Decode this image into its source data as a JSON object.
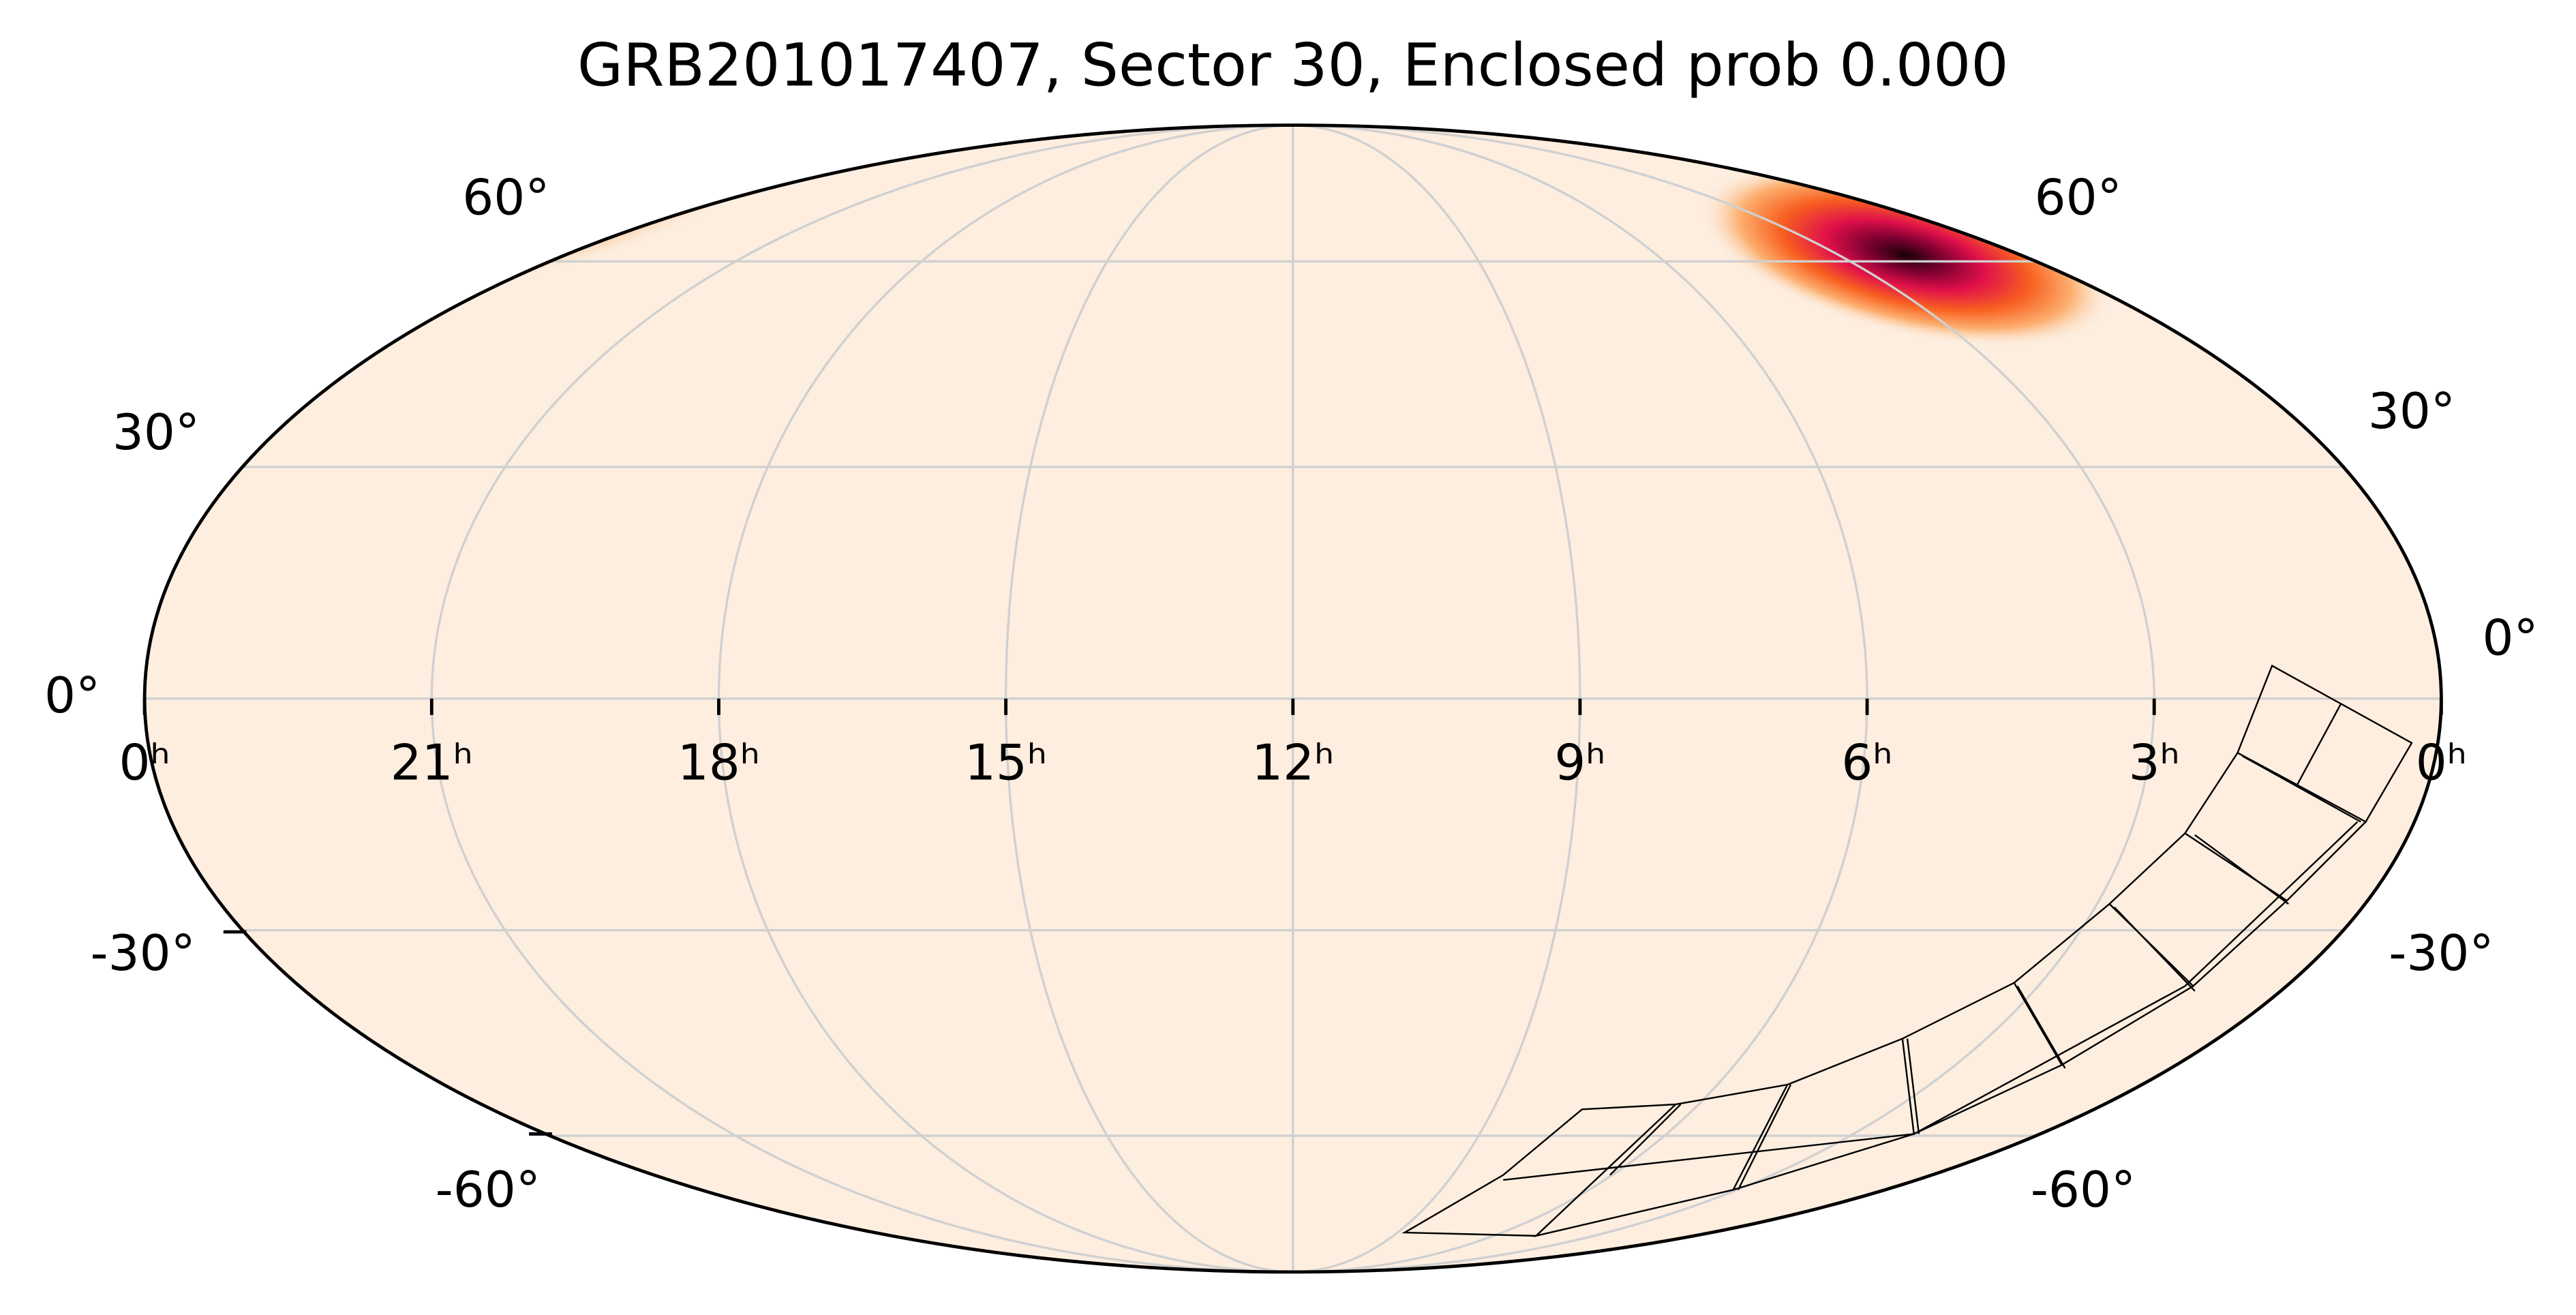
{
  "title": "GRB201017407, Sector 30, Enclosed prob 0.000",
  "ra_labels": [
    "0ʰ",
    "21ʰ",
    "18ʰ",
    "15ʰ",
    "12ʰ",
    "9ʰ",
    "6ʰ",
    "3ʰ",
    "0ʰ"
  ],
  "dec_labels_left": [
    "60°",
    "30°",
    "0°",
    "-30°",
    "-60°"
  ],
  "dec_labels_right": [
    "60°",
    "30°",
    "0°",
    "-30°",
    "-60°"
  ]
}
